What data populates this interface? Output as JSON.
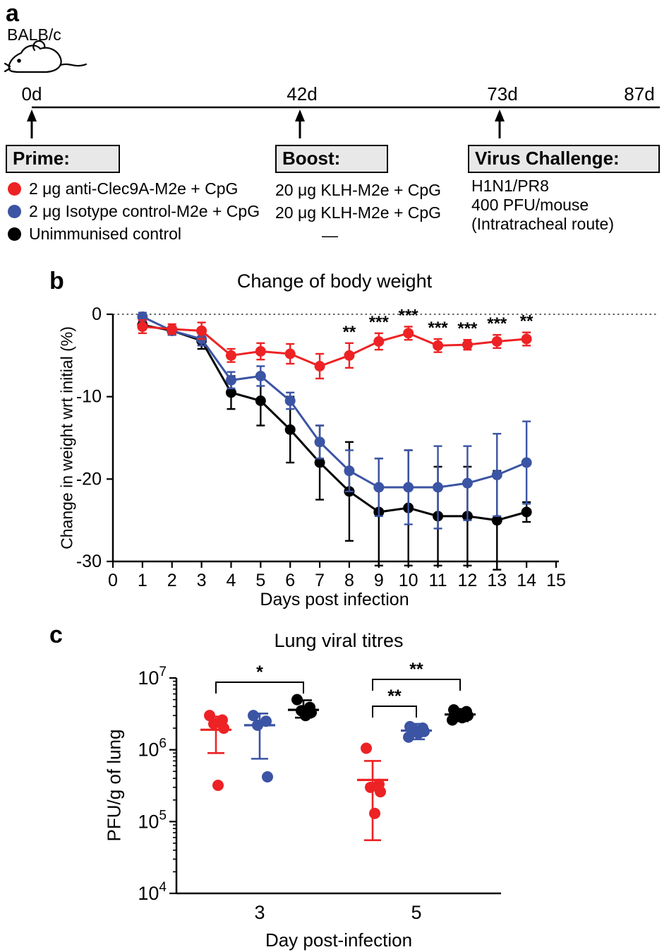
{
  "figure": {
    "panel_a": {
      "label": "a",
      "strain": "BALB/c",
      "timeline": {
        "points": [
          {
            "label": "0d",
            "arrow": true
          },
          {
            "label": "42d",
            "arrow": true
          },
          {
            "label": "73d",
            "arrow": true
          },
          {
            "label": "87d",
            "arrow": false
          }
        ]
      },
      "columns": [
        {
          "box_label": "Prime:",
          "rows": [
            {
              "marker_color": "#ed2224",
              "text": "2 μg anti-Clec9A-M2e + CpG"
            },
            {
              "marker_color": "#3b54a4",
              "text": "2 μg Isotype control-M2e + CpG"
            },
            {
              "marker_color": "#000000",
              "text": "Unimmunised control"
            }
          ]
        },
        {
          "box_label": "Boost:",
          "rows": [
            {
              "text": "20 μg KLH-M2e + CpG"
            },
            {
              "text": "20 μg KLH-M2e + CpG"
            },
            {
              "text": "—"
            }
          ]
        },
        {
          "box_label": "Virus Challenge:",
          "rows": [
            {
              "text": "H1N1/PR8"
            },
            {
              "text": "400 PFU/mouse"
            },
            {
              "text": "(Intratracheal route)"
            }
          ]
        }
      ]
    },
    "panel_b": {
      "label": "b"
    },
    "panel_c": {
      "label": "c"
    }
  },
  "chart_data": [
    {
      "id": "body-weight",
      "type": "line",
      "title": "Change of body weight",
      "xlabel": "Days post infection",
      "ylabel": "Change in weight wrt initial (%)",
      "xlim": [
        0,
        15
      ],
      "ylim": [
        -30,
        0
      ],
      "xticks": [
        0,
        1,
        2,
        3,
        4,
        5,
        6,
        7,
        8,
        9,
        10,
        11,
        12,
        13,
        14,
        15
      ],
      "yticks": [
        0,
        -10,
        -20,
        -30
      ],
      "grid": false,
      "legend_position": "none",
      "baseline_y": 0,
      "x": [
        1,
        2,
        3,
        4,
        5,
        6,
        7,
        8,
        9,
        10,
        11,
        12,
        13,
        14
      ],
      "series": [
        {
          "name": "2 μg anti-Clec9A-M2e + CpG",
          "key": "anti_clec9a",
          "color": "#ed2224",
          "values": [
            -1.5,
            -1.8,
            -2.0,
            -5.0,
            -4.5,
            -4.8,
            -6.3,
            -5.0,
            -3.3,
            -2.3,
            -3.8,
            -3.7,
            -3.3,
            -3.0
          ],
          "errors": [
            0.8,
            0.6,
            1.0,
            0.8,
            1.0,
            1.2,
            1.5,
            1.5,
            1.0,
            0.8,
            0.8,
            0.6,
            0.8,
            0.8
          ]
        },
        {
          "name": "2 μg Isotype control-M2e + CpG",
          "key": "isotype",
          "color": "#3b54a4",
          "values": [
            -0.3,
            -2.0,
            -3.0,
            -8.0,
            -7.5,
            -10.5,
            -15.5,
            -19.0,
            -21.0,
            -21.0,
            -21.0,
            -20.5,
            -19.5,
            -18.0
          ],
          "errors": [
            0.5,
            0.5,
            0.8,
            1.0,
            1.2,
            1.0,
            2.0,
            2.5,
            3.5,
            4.5,
            5.0,
            4.5,
            5.0,
            5.0
          ]
        },
        {
          "name": "Unimmunised control",
          "key": "unimmunised",
          "color": "#000000",
          "values": [
            -1.3,
            -2.0,
            -3.2,
            -9.5,
            -10.5,
            -14.0,
            -18.0,
            -21.5,
            -24.0,
            -23.5,
            -24.5,
            -24.5,
            -25.0,
            -24.0
          ],
          "errors": [
            0.5,
            0.5,
            1.0,
            2.0,
            3.0,
            4.0,
            4.5,
            6.0,
            6.5,
            7.0,
            6.0,
            6.0,
            6.0,
            1.2
          ]
        }
      ],
      "significance": [
        {
          "x": 8,
          "label": "**"
        },
        {
          "x": 9,
          "label": "***"
        },
        {
          "x": 10,
          "label": "***"
        },
        {
          "x": 11,
          "label": "***"
        },
        {
          "x": 12,
          "label": "***"
        },
        {
          "x": 13,
          "label": "***"
        },
        {
          "x": 14,
          "label": "**"
        }
      ]
    },
    {
      "id": "lung-viral-titres",
      "type": "scatter",
      "title": "Lung viral titres",
      "xlabel": "Day post-infection",
      "ylabel": "PFU/g of lung",
      "yscale": "log",
      "ylim": [
        10000,
        10000000
      ],
      "ytick_labels": [
        "10^4",
        "10^5",
        "10^6",
        "10^7"
      ],
      "categories": [
        "3",
        "5"
      ],
      "groups": [
        {
          "day": "3",
          "series": [
            {
              "key": "anti_clec9a",
              "name": "2 μg anti-Clec9A-M2e + CpG",
              "color": "#ed2224",
              "points": [
                3000000,
                2600000,
                2300000,
                2000000,
                320000
              ],
              "mean": 1900000,
              "sd_low": 900000,
              "sd_high": 2900000
            },
            {
              "key": "isotype",
              "name": "2 μg Isotype control-M2e + CpG",
              "color": "#3b54a4",
              "points": [
                3000000,
                2500000,
                2200000,
                420000
              ],
              "mean": 2200000,
              "sd_low": 750000,
              "sd_high": 3200000
            },
            {
              "key": "unimmunised",
              "name": "Unimmunised control",
              "color": "#000000",
              "points": [
                5000000,
                3900000,
                3500000,
                3300000,
                3000000
              ],
              "mean": 3600000,
              "sd_low": 2800000,
              "sd_high": 4900000
            }
          ]
        },
        {
          "day": "5",
          "series": [
            {
              "key": "anti_clec9a",
              "name": "2 μg anti-Clec9A-M2e + CpG",
              "color": "#ed2224",
              "points": [
                1050000,
                330000,
                300000,
                260000,
                130000
              ],
              "mean": 380000,
              "sd_low": 55000,
              "sd_high": 700000
            },
            {
              "key": "isotype",
              "name": "2 μg Isotype control-M2e + CpG",
              "color": "#3b54a4",
              "points": [
                2100000,
                2000000,
                1900000,
                1800000,
                1700000,
                1500000
              ],
              "mean": 1850000,
              "sd_low": 1400000,
              "sd_high": 2300000
            },
            {
              "key": "unimmunised",
              "name": "Unimmunised control",
              "color": "#000000",
              "points": [
                3600000,
                3400000,
                3200000,
                3000000,
                2800000,
                2600000
              ],
              "mean": 3100000,
              "sd_low": 2500000,
              "sd_high": 3700000
            }
          ]
        }
      ],
      "significance": [
        {
          "day": "3",
          "from": "anti_clec9a",
          "to": "unimmunised",
          "label": "*",
          "bracket_y": 88
        },
        {
          "day": "5",
          "from": "anti_clec9a",
          "to": "isotype",
          "label": "**",
          "bracket_y": 122
        },
        {
          "day": "5",
          "from": "anti_clec9a",
          "to": "unimmunised",
          "label": "**",
          "bracket_y": 84
        }
      ]
    }
  ]
}
